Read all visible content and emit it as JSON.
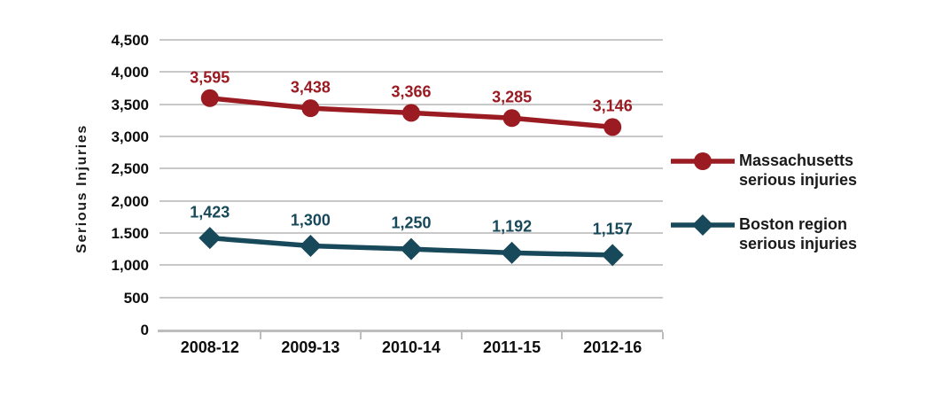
{
  "chart_data": {
    "type": "line",
    "title": "",
    "ylabel": "Serious Injuries",
    "xlabel": "",
    "categories": [
      "2008-12",
      "2009-13",
      "2010-14",
      "2011-15",
      "2012-16"
    ],
    "series": [
      {
        "name": "Massachusetts serious injuries",
        "legend_lines": [
          "Massachusetts",
          "serious injuries"
        ],
        "color": "#9A1B21",
        "marker": "circle",
        "values": [
          3595,
          3438,
          3366,
          3285,
          3146
        ],
        "labels": [
          "3,595",
          "3,438",
          "3,366",
          "3,285",
          "3,146"
        ]
      },
      {
        "name": "Boston region serious injuries",
        "legend_lines": [
          "Boston region",
          "serious injuries"
        ],
        "color": "#17495A",
        "marker": "diamond",
        "values": [
          1423,
          1300,
          1250,
          1192,
          1157
        ],
        "labels": [
          "1,423",
          "1,300",
          "1,250",
          "1,192",
          "1,157"
        ]
      }
    ],
    "y_axis": {
      "min": 0,
      "max": 4500,
      "step": 500,
      "tick_labels": [
        "0",
        "500",
        "1,000",
        "1.500",
        "2,000",
        "2,500",
        "3,000",
        "3,500",
        "4,000",
        "4,500"
      ]
    },
    "grid": true,
    "legend_position": "right",
    "colors": {
      "gridline": "#C8C8C8",
      "axis": "#BDBDBD",
      "tick_text": "#0D0D0D",
      "legend_text": "#1A1A1A"
    }
  }
}
